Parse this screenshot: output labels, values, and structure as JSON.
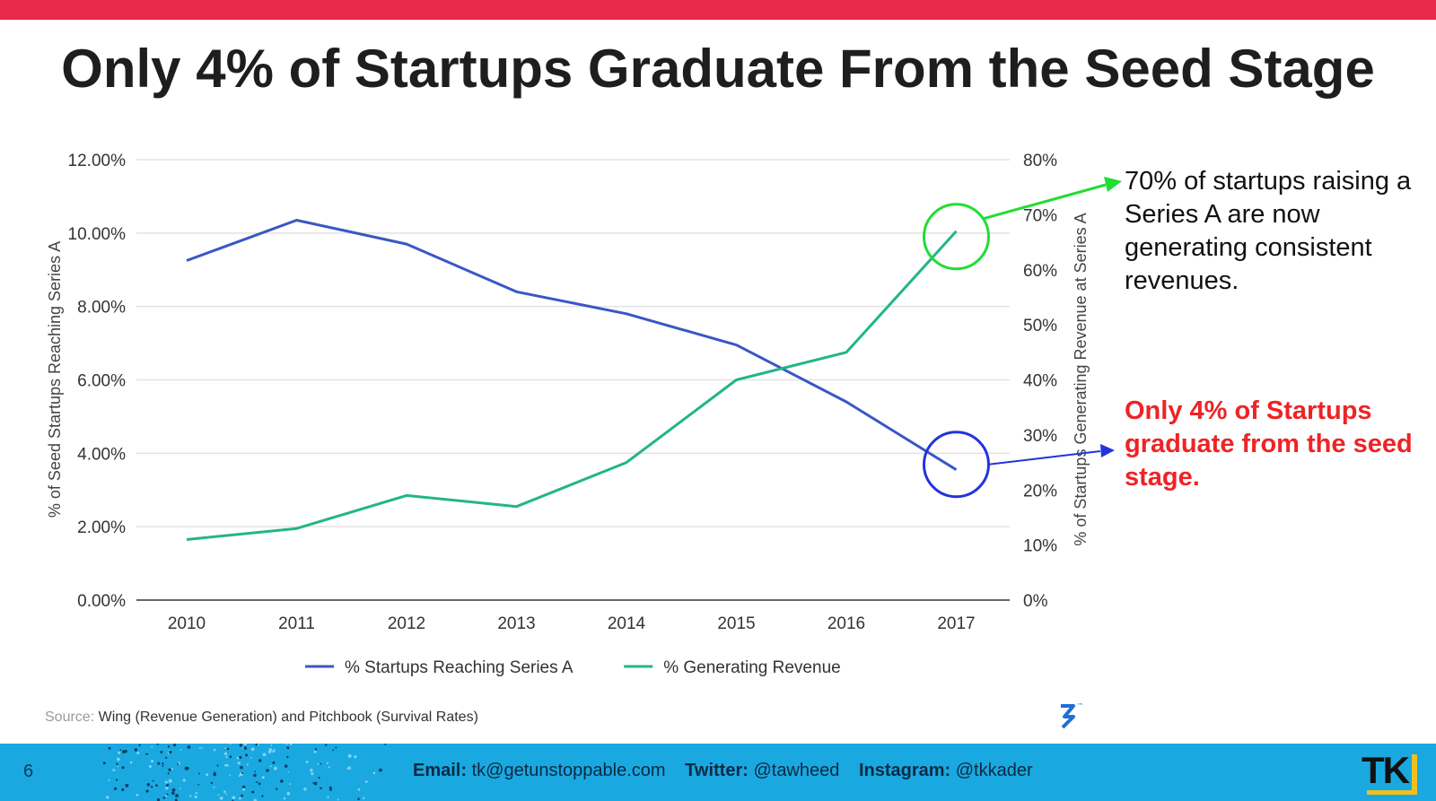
{
  "title": "Only 4% of Startups Graduate From the Seed Stage",
  "chart_data": {
    "type": "line",
    "x": [
      "2010",
      "2011",
      "2012",
      "2013",
      "2014",
      "2015",
      "2016",
      "2017"
    ],
    "series": [
      {
        "name": "% Startups Reaching Series A",
        "axis": "left",
        "color": "#3a57c4",
        "values": [
          9.25,
          10.35,
          9.7,
          8.4,
          7.8,
          6.95,
          5.4,
          3.55
        ]
      },
      {
        "name": "% Generating Revenue",
        "axis": "right",
        "color": "#22b58a",
        "values": [
          11,
          13,
          19,
          17,
          25,
          40,
          45,
          67
        ]
      }
    ],
    "y_left": {
      "label": "% of Seed Startups Reaching Series A",
      "range": [
        0,
        12
      ],
      "ticks": [
        "0.00%",
        "2.00%",
        "4.00%",
        "6.00%",
        "8.00%",
        "10.00%",
        "12.00%"
      ]
    },
    "y_right": {
      "label": "% of Startups Generating Revenue at Series A",
      "range": [
        0,
        80
      ],
      "ticks": [
        "0%",
        "10%",
        "20%",
        "30%",
        "40%",
        "50%",
        "60%",
        "70%",
        "80%"
      ]
    },
    "grid": true,
    "legend_position": "bottom"
  },
  "annotations": {
    "green_note": "70% of startups raising a Series A are now generating consistent revenues.",
    "red_note": "Only 4% of Startups graduate from the seed stage.",
    "green_color": "#22dd33",
    "blue_color": "#2233dd"
  },
  "source": {
    "label": "Source:",
    "text": "Wing (Revenue Generation) and Pitchbook (Survival Rates)"
  },
  "footer": {
    "page_number": "6",
    "email_label": "Email:",
    "email": "tk@getunstoppable.com",
    "twitter_label": "Twitter:",
    "twitter": "@tawheed",
    "instagram_label": "Instagram:",
    "instagram": "@tkkader",
    "logo_text": "TK"
  },
  "colors": {
    "top_bar": "#e8294a",
    "footer": "#1aa8e0"
  }
}
